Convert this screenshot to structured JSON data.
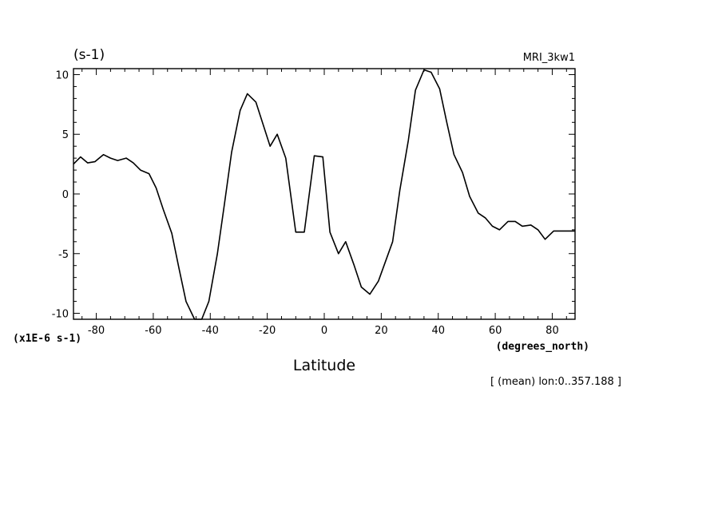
{
  "chart_data": {
    "type": "line",
    "title": "(s-1)",
    "model_label": "MRI_3kw1",
    "xlabel": "Latitude",
    "x_unit_label": "(degrees_north)",
    "y_scale_label": "(x1E-6 s-1)",
    "footnote": "[ (mean) lon:0..357.188 ]",
    "xlim": [
      -88,
      88
    ],
    "ylim": [
      -10.5,
      10.5
    ],
    "x_ticks": [
      -80,
      -60,
      -40,
      -20,
      0,
      20,
      40,
      60,
      80
    ],
    "x_tick_labels": [
      "-80",
      "-60",
      "-40",
      "-20",
      "0",
      "20",
      "40",
      "60",
      "80"
    ],
    "y_ticks": [
      -10,
      -5,
      0,
      5,
      10
    ],
    "y_tick_labels": [
      "-10",
      "-5",
      "0",
      "5",
      "10"
    ],
    "grid": false,
    "series": [
      {
        "x": [
          -88,
          -85.5,
          -83,
          -80.5,
          -77.5,
          -75,
          -72.5,
          -69.5,
          -67,
          -64.5,
          -61.5,
          -59,
          -56.5,
          -53.5,
          -51,
          -48.5,
          -45.5,
          -43,
          -40.5,
          -37.5,
          -35,
          -32.5,
          -29.5,
          -27,
          -24,
          -19,
          -16.5,
          -13.5,
          -10,
          -7,
          -3.5,
          -0.5,
          2,
          5,
          7.5,
          10.5,
          13,
          16,
          19,
          24,
          26.5,
          29.5,
          32,
          35,
          37.5,
          40.5,
          43,
          45.5,
          48.5,
          51,
          54,
          56.5,
          59,
          61.5,
          64.5,
          67,
          69.5,
          72.5,
          75,
          77.5,
          80.5,
          83,
          85.5,
          88
        ],
        "y": [
          2.5,
          3.1,
          2.6,
          2.7,
          3.3,
          3.0,
          2.8,
          3.0,
          2.6,
          2.0,
          1.7,
          0.5,
          -1.3,
          -3.3,
          -6.2,
          -9.0,
          -10.5,
          -10.5,
          -9.0,
          -5.0,
          -0.8,
          3.5,
          7.0,
          8.4,
          7.7,
          4.0,
          5.0,
          3.0,
          -3.2,
          -3.2,
          3.2,
          3.1,
          -3.2,
          -5.0,
          -4.0,
          -6.0,
          -7.8,
          -8.4,
          -7.3,
          -4.0,
          0.3,
          4.5,
          8.7,
          10.4,
          10.2,
          8.8,
          6.0,
          3.3,
          1.8,
          -0.2,
          -1.6,
          -2.0,
          -2.7,
          -3.0,
          -2.3,
          -2.3,
          -2.7,
          -2.6,
          -3.0,
          -3.8,
          -3.1,
          -3.1,
          -3.1,
          -3.1
        ]
      }
    ]
  }
}
